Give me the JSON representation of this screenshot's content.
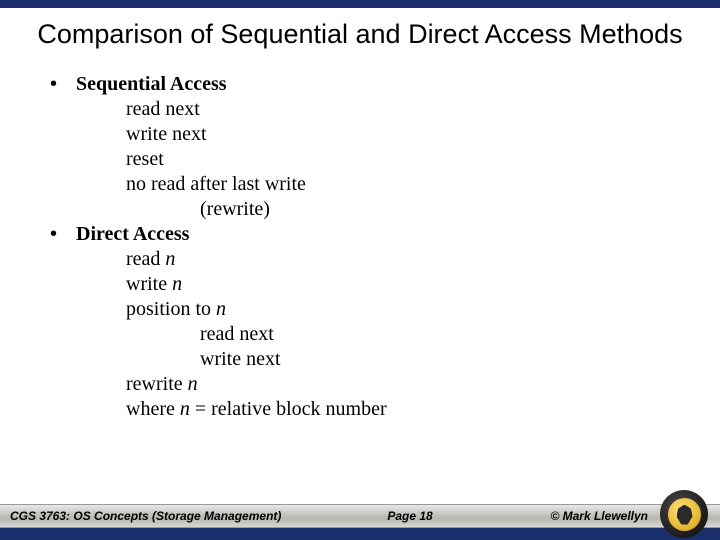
{
  "title": "Comparison of Sequential and Direct Access Methods",
  "bullets": {
    "seq_head": "Sequential Access",
    "seq_items": {
      "a": "read next",
      "b": "write next",
      "c": "reset",
      "d": "no read after last write",
      "e": "(rewrite)"
    },
    "dir_head": "Direct Access",
    "dir_items": {
      "a_pre": "read ",
      "a_it": "n",
      "b_pre": "write ",
      "b_it": "n",
      "c_pre": "position to ",
      "c_it": "n",
      "d": "read next",
      "e": "write next",
      "f_pre": "rewrite ",
      "f_it": "n",
      "g_pre": "where ",
      "g_it": "n",
      "g_post": " = relative block number"
    }
  },
  "footer": {
    "left": "CGS 3763: OS Concepts  (Storage Management)",
    "center": "Page 18",
    "right": "© Mark Llewellyn"
  },
  "colors": {
    "brand_bar": "#1a2e6b",
    "background": "#ffffff",
    "text": "#000000"
  },
  "fonts": {
    "title_family": "Arial",
    "title_size_pt": 27,
    "body_family": "Times New Roman",
    "body_size_pt": 20,
    "footer_size_pt": 12
  }
}
